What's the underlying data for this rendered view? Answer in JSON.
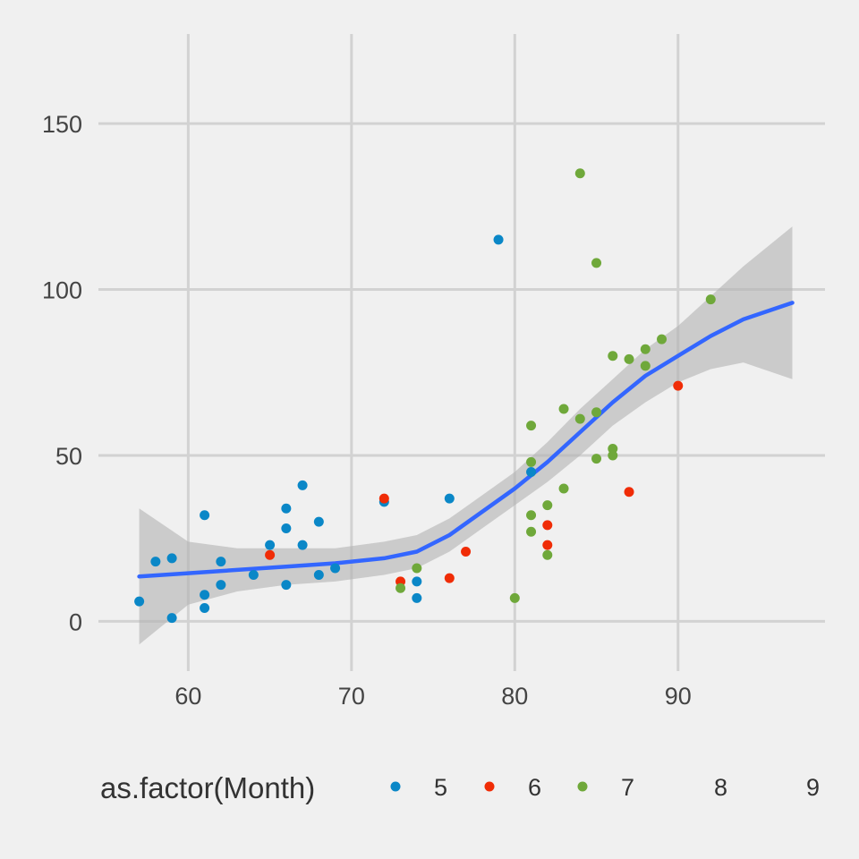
{
  "chart_data": {
    "type": "scatter",
    "title": "",
    "xlabel": "",
    "ylabel": "",
    "xlim": [
      54.5,
      99
    ],
    "ylim": [
      -15,
      177
    ],
    "x_ticks": [
      60,
      70,
      80,
      90
    ],
    "y_ticks": [
      0,
      50,
      100,
      150
    ],
    "grid": true,
    "legend_position": "bottom",
    "legend": {
      "title": "as.factor(Month)",
      "entries": [
        {
          "label": "5",
          "color": "#0a87c7"
        },
        {
          "label": "6",
          "color": "#f02c06"
        },
        {
          "label": "7",
          "color": "#6fa83a"
        },
        {
          "label": "8",
          "color": ""
        },
        {
          "label": "9",
          "color": ""
        }
      ]
    },
    "series": [
      {
        "name": "5",
        "color": "#0a87c7",
        "points": [
          [
            57,
            6
          ],
          [
            58,
            18
          ],
          [
            59,
            19
          ],
          [
            59,
            1
          ],
          [
            61,
            32
          ],
          [
            61,
            8
          ],
          [
            61,
            4
          ],
          [
            62,
            18
          ],
          [
            62,
            11
          ],
          [
            64,
            14
          ],
          [
            65,
            23
          ],
          [
            66,
            34
          ],
          [
            66,
            28
          ],
          [
            66,
            11
          ],
          [
            67,
            41
          ],
          [
            67,
            23
          ],
          [
            68,
            30
          ],
          [
            68,
            14
          ],
          [
            69,
            16
          ],
          [
            72,
            36
          ],
          [
            74,
            12
          ],
          [
            74,
            7
          ],
          [
            76,
            37
          ],
          [
            79,
            115
          ],
          [
            81,
            45
          ]
        ]
      },
      {
        "name": "6",
        "color": "#f02c06",
        "points": [
          [
            65,
            20
          ],
          [
            72,
            37
          ],
          [
            73,
            12
          ],
          [
            76,
            13
          ],
          [
            77,
            21
          ],
          [
            82,
            29
          ],
          [
            82,
            23
          ],
          [
            87,
            39
          ],
          [
            90,
            71
          ]
        ]
      },
      {
        "name": "7",
        "color": "#6fa83a",
        "points": [
          [
            73,
            10
          ],
          [
            74,
            16
          ],
          [
            80,
            7
          ],
          [
            81,
            59
          ],
          [
            81,
            48
          ],
          [
            81,
            32
          ],
          [
            81,
            27
          ],
          [
            82,
            35
          ],
          [
            82,
            20
          ],
          [
            83,
            64
          ],
          [
            83,
            40
          ],
          [
            84,
            135
          ],
          [
            84,
            61
          ],
          [
            85,
            108
          ],
          [
            85,
            63
          ],
          [
            85,
            49
          ],
          [
            86,
            80
          ],
          [
            86,
            52
          ],
          [
            86,
            50
          ],
          [
            87,
            79
          ],
          [
            88,
            82
          ],
          [
            88,
            77
          ],
          [
            89,
            85
          ],
          [
            92,
            97
          ]
        ]
      }
    ],
    "smooth": {
      "color": "#3366ff",
      "band_color": "#b3b3b3",
      "x": [
        57,
        60,
        63,
        66,
        69,
        72,
        74,
        76,
        78,
        80,
        82,
        84,
        86,
        88,
        90,
        92,
        94,
        97
      ],
      "y": [
        13.5,
        14.5,
        15.5,
        16.5,
        17.5,
        19,
        21,
        26,
        33,
        40,
        48,
        57,
        66,
        74,
        80,
        86,
        91,
        96
      ],
      "lower": [
        -7,
        5,
        9,
        11,
        12,
        14,
        16,
        21,
        28,
        35,
        42,
        50,
        59,
        66,
        72,
        76,
        78,
        73
      ],
      "upper": [
        34,
        24,
        22,
        22,
        22,
        24,
        26,
        31,
        38,
        45,
        54,
        64,
        73,
        82,
        89,
        98,
        107,
        119
      ]
    }
  }
}
